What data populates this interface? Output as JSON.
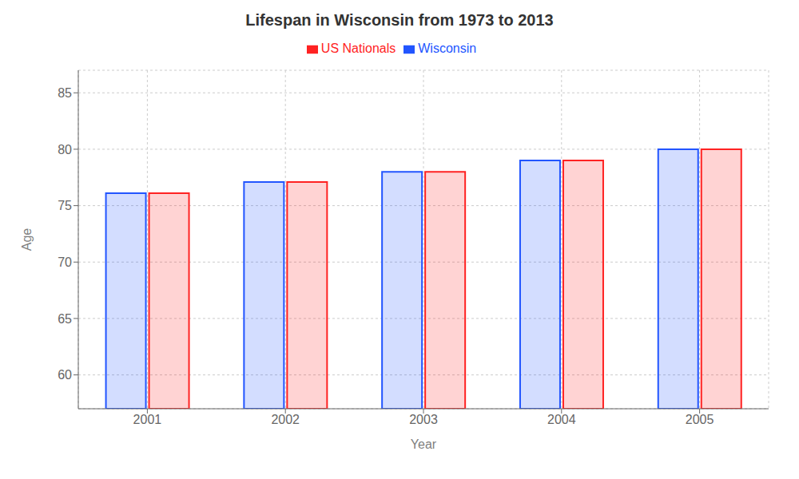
{
  "chart_data": {
    "type": "bar",
    "title": "Lifespan in Wisconsin from 1973 to 2013",
    "xlabel": "Year",
    "ylabel": "Age",
    "categories": [
      "2001",
      "2002",
      "2003",
      "2004",
      "2005"
    ],
    "series": [
      {
        "name": "Wisconsin",
        "color": "#2255ff",
        "values": [
          76.1,
          77.1,
          78.0,
          79.0,
          80.0
        ]
      },
      {
        "name": "US Nationals",
        "color": "#ff2222",
        "values": [
          76.1,
          77.1,
          78.0,
          79.0,
          80.0
        ]
      }
    ],
    "ylim": [
      57,
      87
    ],
    "yticks": [
      60,
      65,
      70,
      75,
      80,
      85
    ],
    "grid": true,
    "legend": "top"
  }
}
